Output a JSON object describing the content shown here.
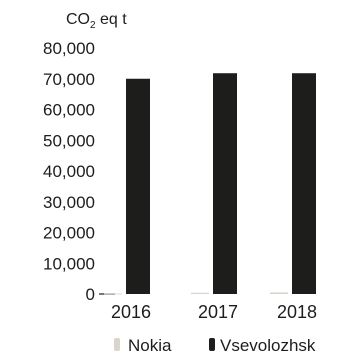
{
  "chart_data": {
    "type": "bar",
    "ylabel": "CO",
    "ylabel_sub": "2",
    "ylabel_suffix": " eq t",
    "categories": [
      "2016",
      "2017",
      "2018"
    ],
    "ylim": [
      0,
      80000
    ],
    "yticks": [
      0,
      10000,
      20000,
      30000,
      40000,
      50000,
      60000,
      70000,
      80000
    ],
    "ytick_labels": [
      "0",
      "10,000",
      "20,000",
      "30,000",
      "40,000",
      "50,000",
      "60,000",
      "70,000",
      "80,000"
    ],
    "series": [
      {
        "name": "Nokia",
        "color": "#d9d4cc",
        "values": [
          150,
          400,
          500
        ]
      },
      {
        "name": "Vsevolozhsk",
        "color": "#1d1d1b",
        "values": [
          70000,
          71800,
          71800
        ]
      }
    ],
    "legend_position": "bottom",
    "grid": false
  }
}
